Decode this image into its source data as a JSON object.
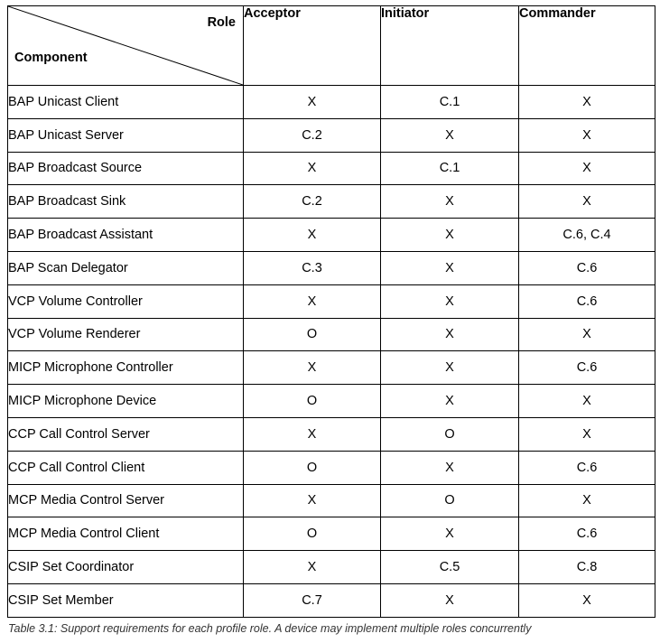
{
  "table": {
    "header": {
      "corner_role": "Role",
      "corner_component": "Component",
      "columns": [
        "Acceptor",
        "Initiator",
        "Commander"
      ]
    },
    "rows": [
      {
        "component": "BAP Unicast Client",
        "values": [
          "X",
          "C.1",
          "X"
        ]
      },
      {
        "component": "BAP Unicast Server",
        "values": [
          "C.2",
          "X",
          "X"
        ]
      },
      {
        "component": "BAP Broadcast Source",
        "values": [
          "X",
          "C.1",
          "X"
        ]
      },
      {
        "component": "BAP Broadcast Sink",
        "values": [
          "C.2",
          "X",
          "X"
        ]
      },
      {
        "component": "BAP Broadcast Assistant",
        "values": [
          "X",
          "X",
          "C.6, C.4"
        ]
      },
      {
        "component": "BAP Scan Delegator",
        "values": [
          "C.3",
          "X",
          "C.6"
        ]
      },
      {
        "component": "VCP Volume Controller",
        "values": [
          "X",
          "X",
          "C.6"
        ]
      },
      {
        "component": "VCP Volume Renderer",
        "values": [
          "O",
          "X",
          "X"
        ]
      },
      {
        "component": "MICP Microphone Controller",
        "values": [
          "X",
          "X",
          "C.6"
        ]
      },
      {
        "component": "MICP Microphone Device",
        "values": [
          "O",
          "X",
          "X"
        ]
      },
      {
        "component": "CCP Call Control Server",
        "values": [
          "X",
          "O",
          "X"
        ]
      },
      {
        "component": "CCP Call Control Client",
        "values": [
          "O",
          "X",
          "C.6"
        ]
      },
      {
        "component": "MCP Media Control Server",
        "values": [
          "X",
          "O",
          "X"
        ]
      },
      {
        "component": "MCP Media Control Client",
        "values": [
          "O",
          "X",
          "C.6"
        ]
      },
      {
        "component": "CSIP Set Coordinator",
        "values": [
          "X",
          "C.5",
          "C.8"
        ]
      },
      {
        "component": "CSIP Set Member",
        "values": [
          "C.7",
          "X",
          "X"
        ]
      }
    ]
  },
  "caption": "Table 3.1: Support requirements for each profile role. A device may implement multiple roles concurrently"
}
